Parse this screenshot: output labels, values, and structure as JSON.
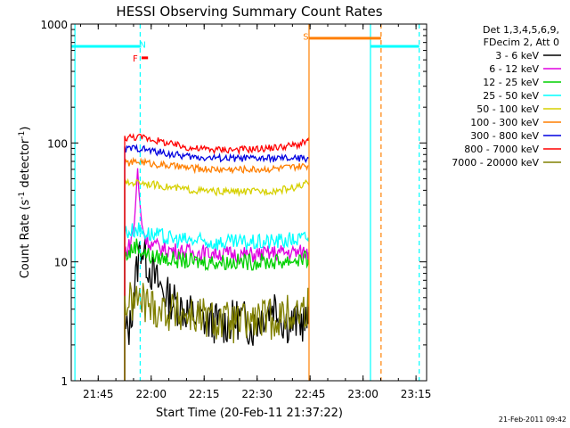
{
  "chart_data": {
    "type": "line",
    "title": "HESSI Observing Summary Count Rates",
    "xlabel": "Start Time (20-Feb-11 21:37:22)",
    "ylabel": "Count Rate (s⁻¹ detector⁻¹)",
    "ylabel_parts": [
      "Count Rate (s",
      "-1",
      " detector",
      "-1",
      ")"
    ],
    "xlim": [
      21.6227,
      23.3
    ],
    "ylim": [
      1,
      1000
    ],
    "yscale": "log",
    "grid": false,
    "x_tick_values": [
      21.75,
      22.0,
      22.25,
      22.5,
      22.75,
      23.0,
      23.25
    ],
    "x_tick_labels": [
      "21:45",
      "22:00",
      "22:15",
      "22:30",
      "22:45",
      "23:00",
      "23:15"
    ],
    "y_tick_values": [
      1,
      10,
      100,
      1000
    ],
    "y_tick_labels": [
      "1",
      "10",
      "100",
      "1000"
    ],
    "legend_position": "right",
    "legend_header": [
      "Det 1,3,4,5,6,9,",
      "FDecim 2, Att 0"
    ],
    "series": [
      {
        "name": "3 - 6 keV",
        "color": "#000000",
        "x": [
          21.875,
          21.9,
          21.92,
          21.95,
          21.98,
          22.02,
          22.08,
          22.15,
          22.25,
          22.35,
          22.42,
          22.48,
          22.52,
          22.58,
          22.62,
          22.66,
          22.7,
          22.74
        ],
        "y": [
          2.5,
          2.8,
          6,
          14,
          10,
          7,
          5,
          4,
          3.2,
          3.0,
          3.4,
          2.8,
          3.5,
          4.5,
          3.2,
          3.0,
          3.2,
          3.0
        ]
      },
      {
        "name": "6 - 12 keV",
        "color": "#e000e0",
        "x": [
          21.875,
          21.9,
          21.92,
          21.935,
          21.95,
          21.97,
          22.0,
          22.05,
          22.1,
          22.2,
          22.3,
          22.4,
          22.5,
          22.6,
          22.7,
          22.74
        ],
        "y": [
          12,
          14,
          20,
          60,
          25,
          16,
          14,
          13,
          12.5,
          12,
          12,
          11.5,
          11.5,
          12,
          12,
          12
        ]
      },
      {
        "name": "12 - 25 keV",
        "color": "#00d000",
        "x": [
          21.875,
          21.9,
          21.93,
          21.95,
          22.0,
          22.1,
          22.2,
          22.3,
          22.4,
          22.5,
          22.6,
          22.7,
          22.74
        ],
        "y": [
          11,
          12,
          14,
          12.5,
          11,
          10.5,
          10,
          10,
          10,
          10,
          10,
          10.5,
          10.5
        ]
      },
      {
        "name": "25 - 50 keV",
        "color": "#00ffff",
        "x": [
          21.875,
          21.9,
          21.93,
          22.0,
          22.1,
          22.2,
          22.3,
          22.4,
          22.5,
          22.6,
          22.7,
          22.74
        ],
        "y": [
          18,
          18,
          19,
          17,
          15.5,
          15,
          14.5,
          14.5,
          14.5,
          15,
          15.5,
          16
        ]
      },
      {
        "name": "50 - 100 keV",
        "color": "#d6d000",
        "x": [
          21.875,
          21.9,
          21.95,
          22.0,
          22.1,
          22.2,
          22.3,
          22.4,
          22.5,
          22.6,
          22.7,
          22.74
        ],
        "y": [
          45,
          46,
          47,
          45,
          42,
          40,
          39,
          39,
          39,
          40,
          43,
          46
        ]
      },
      {
        "name": "100 - 300 keV",
        "color": "#ff7f00",
        "x": [
          21.875,
          21.9,
          21.95,
          22.0,
          22.1,
          22.2,
          22.3,
          22.4,
          22.5,
          22.6,
          22.7,
          22.74
        ],
        "y": [
          67,
          68,
          70,
          67,
          64,
          61,
          60,
          60,
          60,
          61,
          63,
          64
        ]
      },
      {
        "name": "300 - 800 keV",
        "color": "#0000e0",
        "x": [
          21.875,
          21.9,
          21.95,
          22.0,
          22.1,
          22.2,
          22.3,
          22.4,
          22.5,
          22.6,
          22.7,
          22.74
        ],
        "y": [
          88,
          90,
          90,
          86,
          80,
          76,
          75,
          74,
          74,
          74,
          74,
          74
        ]
      },
      {
        "name": "800 - 7000 keV",
        "color": "#ff0000",
        "x": [
          21.875,
          21.9,
          21.95,
          22.0,
          22.1,
          22.2,
          22.3,
          22.4,
          22.5,
          22.6,
          22.7,
          22.74
        ],
        "y": [
          110,
          112,
          112,
          108,
          97,
          90,
          88,
          88,
          89,
          92,
          97,
          104
        ]
      },
      {
        "name": "7000 - 20000 keV",
        "color": "#808000",
        "x": [
          21.875,
          21.9,
          21.95,
          22.0,
          22.1,
          22.2,
          22.3,
          22.4,
          22.5,
          22.6,
          22.7,
          22.74
        ],
        "y": [
          4.5,
          4.5,
          4.8,
          4.2,
          3.8,
          3.5,
          3.2,
          3.0,
          3.2,
          3.4,
          3.8,
          4.2
        ]
      }
    ],
    "vertical_lines": [
      {
        "x": 21.64,
        "color": "#00ffff",
        "style": "solid"
      },
      {
        "x": 21.948,
        "color": "#00ffff",
        "style": "dashed"
      },
      {
        "x": 22.745,
        "color": "#ff7f00",
        "style": "solid"
      },
      {
        "x": 23.035,
        "color": "#00ffff",
        "style": "solid"
      },
      {
        "x": 23.085,
        "color": "#ff7f00",
        "style": "dashed"
      },
      {
        "x": 23.265,
        "color": "#00ffff",
        "style": "dashed"
      }
    ],
    "horizontal_segments": [
      {
        "x": [
          21.6227,
          21.948
        ],
        "y": 650,
        "color": "#00ffff"
      },
      {
        "x": [
          23.035,
          23.265
        ],
        "y": 650,
        "color": "#00ffff"
      },
      {
        "x": [
          22.745,
          23.085
        ],
        "y": 760,
        "color": "#ff7f00"
      },
      {
        "x": [
          21.955,
          21.985
        ],
        "y": 520,
        "color": "#ff0000"
      }
    ],
    "annotations": [
      {
        "text": "N",
        "x": 21.96,
        "y": 680,
        "color": "#00ffff"
      },
      {
        "text": "F",
        "x": 21.925,
        "y": 520,
        "color": "#ff0000"
      },
      {
        "text": "S",
        "x": 22.73,
        "y": 790,
        "color": "#ff7f00"
      }
    ],
    "timestamp": "21-Feb-2011 09:42"
  }
}
